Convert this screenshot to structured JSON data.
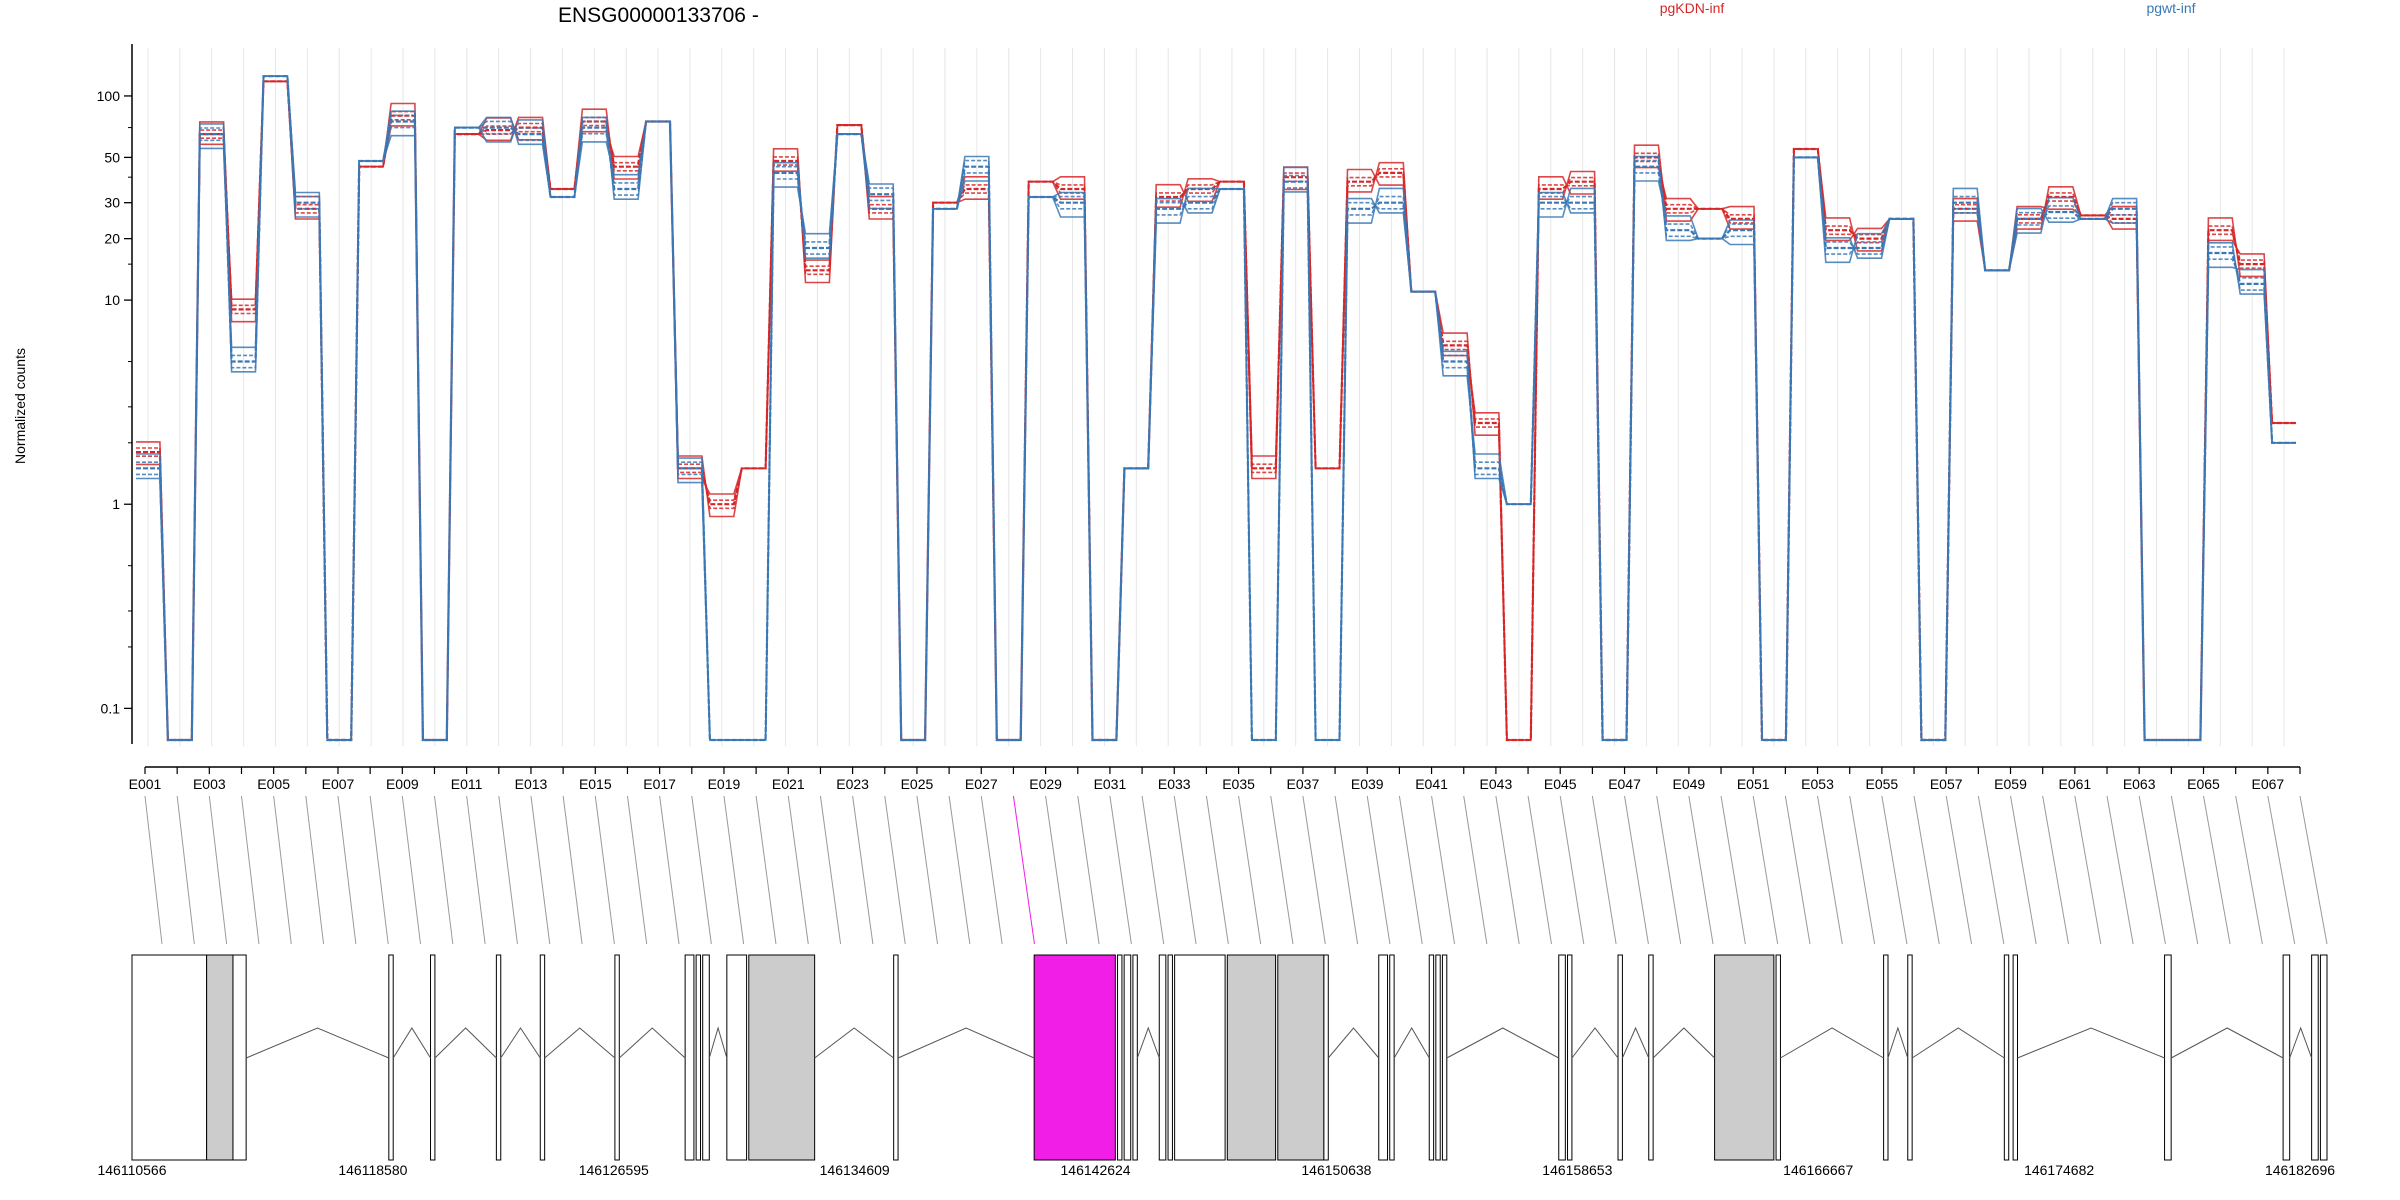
{
  "chart_data": {
    "type": "line",
    "title": "ENSG00000133706 -",
    "ylabel": "Normalized counts",
    "yscale": "log",
    "ylim": [
      0.07,
      150
    ],
    "yticks": [
      0.1,
      1,
      10,
      20,
      30,
      50,
      100
    ],
    "ytick_labels": [
      "0.1",
      "1",
      "10",
      "20",
      "30",
      "50",
      "100"
    ],
    "grid": "vertical",
    "legend_placement": "top-right",
    "exons": [
      "E001",
      "E002",
      "E003",
      "E004",
      "E005",
      "E006",
      "E007",
      "E008",
      "E009",
      "E010",
      "E011",
      "E012",
      "E013",
      "E014",
      "E015",
      "E016",
      "E017",
      "E018",
      "E019",
      "E020",
      "E021",
      "E022",
      "E023",
      "E024",
      "E025",
      "E026",
      "E027",
      "E028",
      "E029",
      "E030",
      "E031",
      "E032",
      "E033",
      "E034",
      "E035",
      "E036",
      "E037",
      "E038",
      "E039",
      "E040",
      "E041",
      "E042",
      "E043",
      "E044",
      "E045",
      "E046",
      "E047",
      "E048",
      "E049",
      "E050",
      "E051",
      "E052",
      "E053",
      "E054",
      "E055",
      "E056",
      "E057",
      "E058",
      "E059",
      "E060",
      "E061",
      "E062",
      "E063",
      "E064",
      "E065",
      "E066",
      "E067",
      "E068"
    ],
    "xtick_labels": [
      "E001",
      "E003",
      "E005",
      "E007",
      "E009",
      "E011",
      "E013",
      "E015",
      "E017",
      "E019",
      "E021",
      "E023",
      "E025",
      "E027",
      "E029",
      "E031",
      "E033",
      "E035",
      "E037",
      "E039",
      "E041",
      "E043",
      "E045",
      "E047",
      "E049",
      "E051",
      "E053",
      "E055",
      "E057",
      "E059",
      "E061",
      "E063",
      "E065",
      "E067"
    ],
    "series": [
      {
        "name": "pgKDN-inf",
        "color": "#d62728",
        "values": [
          1.8,
          0.07,
          65,
          9,
          118,
          28,
          0.07,
          45,
          80,
          0.07,
          65,
          68,
          70,
          35,
          75,
          45,
          75,
          1.5,
          1.0,
          1.5,
          48,
          14,
          72,
          28,
          0.07,
          30,
          35,
          0.07,
          38,
          35,
          0.07,
          1.5,
          32,
          35,
          38,
          1.5,
          40,
          1.5,
          38,
          42,
          11,
          6,
          2.5,
          0.07,
          35,
          38,
          0.07,
          50,
          28,
          28,
          25,
          0.07,
          55,
          22,
          20,
          25,
          0.07,
          28,
          14,
          25,
          32,
          26,
          25,
          0.07,
          0.07,
          22,
          15,
          2.5
        ]
      },
      {
        "name": "pgwt-inf",
        "color": "#3a78b5",
        "values": [
          1.5,
          0.07,
          65,
          5,
          125,
          30,
          0.07,
          48,
          75,
          0.07,
          70,
          70,
          65,
          32,
          70,
          35,
          75,
          1.5,
          0.07,
          0.07,
          42,
          18,
          65,
          33,
          0.07,
          28,
          45,
          0.07,
          32,
          30,
          0.07,
          1.5,
          28,
          30,
          35,
          0.07,
          38,
          0.07,
          28,
          30,
          11,
          5,
          1.5,
          1.0,
          30,
          30,
          0.07,
          45,
          22,
          20,
          22,
          0.07,
          50,
          18,
          18,
          25,
          0.07,
          30,
          14,
          25,
          27,
          25,
          28,
          0.07,
          0.07,
          17,
          12,
          2.0
        ]
      }
    ],
    "gene_model": {
      "coordinate_labels": [
        "146110566",
        "146118580",
        "146126595",
        "146134609",
        "146142624",
        "146150638",
        "146158653",
        "146166667",
        "146174682",
        "146182696"
      ],
      "highlight_color": "#f01ee6"
    }
  }
}
